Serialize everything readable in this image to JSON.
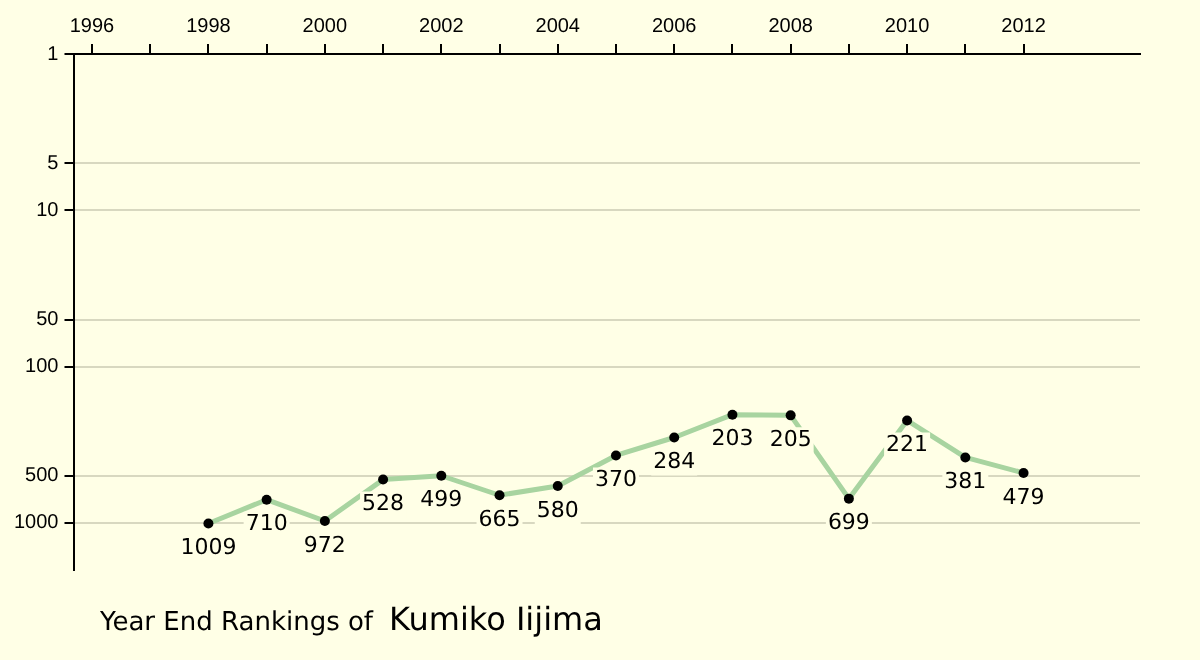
{
  "chart_data": {
    "type": "line",
    "title": "Year End Rankings of",
    "subtitle": "Kumiko Iijima",
    "x": [
      1998,
      1999,
      2000,
      2001,
      2002,
      2003,
      2004,
      2005,
      2006,
      2007,
      2008,
      2009,
      2010,
      2011,
      2012
    ],
    "series": [
      {
        "color": "#a8d4a0",
        "values": [
          1009,
          710,
          972,
          528,
          499,
          665,
          580,
          370,
          284,
          203,
          205,
          699,
          221,
          381,
          479
        ]
      }
    ],
    "xlim": [
      1995.7,
      2014
    ],
    "xticks": [
      1996,
      {
        "value": 1997,
        "label": null
      },
      1998,
      {
        "value": 1999,
        "label": null
      },
      2000,
      {
        "value": 2001,
        "label": null
      },
      2002,
      {
        "value": 2003,
        "label": null
      },
      2004,
      {
        "value": 2005,
        "label": null
      },
      2006,
      {
        "value": 2007,
        "label": null
      },
      2008,
      {
        "value": 2009,
        "label": null
      },
      2010,
      {
        "value": 2011,
        "label": null
      },
      2012
    ],
    "ylim": [
      2000,
      1
    ],
    "yticks": [
      1,
      5,
      10,
      50,
      100,
      500,
      1000
    ],
    "log": "y",
    "grid": "y",
    "marker": "circle",
    "line_style": "solid",
    "data_labels": true,
    "legend": false
  }
}
